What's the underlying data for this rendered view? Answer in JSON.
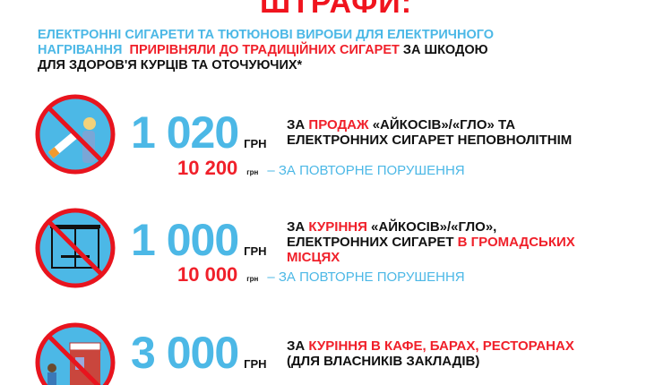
{
  "title": "ШТРАФИ:",
  "intro": {
    "part1": "ЕЛЕКТРОННІ СИГАРЕТИ ТА ТЮТЮНОВІ ВИРОБИ ДЛЯ ЕЛЕКТРИЧНОГО",
    "part2": "НАГРІВАННЯ ",
    "part3": "ПРИРІВНЯЛИ ДО ТРАДИЦІЙНИХ СИГАРЕТ",
    "part4": " ЗА ШКОДОЮ",
    "part5": "ДЛЯ ЗДОРОВ'Я КУРЦІВ ТА ОТОЧУЮЧИХ*"
  },
  "currency": "ГРН",
  "currency_small": "грн",
  "repeat_label": "– ЗА ПОВТОРНЕ ПОРУШЕННЯ",
  "fines": [
    {
      "icon": "no-selling-to-minors-icon",
      "amount": "1 020",
      "repeat_amount": "10 200",
      "desc": [
        "ЗА ",
        "ПРОДАЖ",
        " «АЙКОСІВ»/«ГЛО» ТА",
        "ЕЛЕКТРОННИХ СИГАРЕТ НЕПОВНОЛІТНІМ"
      ]
    },
    {
      "icon": "no-smoking-public-places-icon",
      "amount": "1 000",
      "repeat_amount": "10 000",
      "desc": [
        "ЗА ",
        "КУРІННЯ",
        " «АЙКОСІВ»/«ГЛО»,",
        "ЕЛЕКТРОННИХ СИГАРЕТ ",
        "В ГРОМАДСЬКИХ",
        "МІСЦЯХ"
      ]
    },
    {
      "icon": "no-smoking-restaurants-icon",
      "amount": "3 000",
      "desc": [
        "ЗА ",
        "КУРІННЯ В КАФЕ, БАРАХ, РЕСТОРАНАХ",
        "(ДЛЯ ВЛАСНИКІВ ЗАКЛАДІВ)"
      ]
    }
  ],
  "colors": {
    "blue": "#4cb8e6",
    "red": "#f0202a"
  }
}
